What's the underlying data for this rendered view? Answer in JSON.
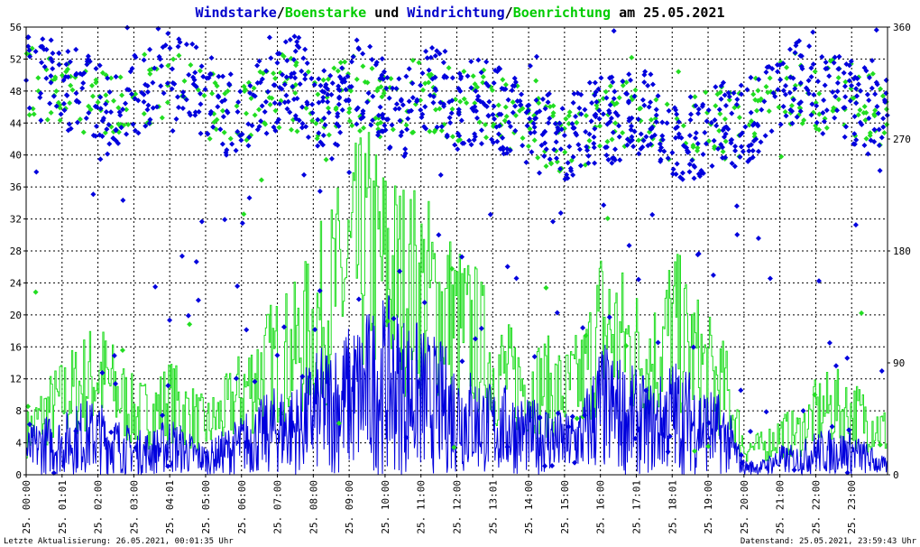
{
  "title": {
    "parts": [
      {
        "text": "Windstarke",
        "color": "#0000cc"
      },
      {
        "text": "/",
        "color": "#000000"
      },
      {
        "text": "Boenstarke",
        "color": "#00cc00"
      },
      {
        "text": " und ",
        "color": "#000000"
      },
      {
        "text": "Windrichtung",
        "color": "#0000cc"
      },
      {
        "text": "/",
        "color": "#000000"
      },
      {
        "text": "Boenrichtung",
        "color": "#00cc00"
      },
      {
        "text": " am 25.05.2021",
        "color": "#000000"
      }
    ]
  },
  "footer": {
    "left": "Letzte Aktualisierung: 26.05.2021, 00:01:35 Uhr",
    "right": "Datenstand: 25.05.2021, 23:59:43 Uhr"
  },
  "colors": {
    "wind": "#0000dd",
    "gust": "#22dd22",
    "grid": "#000000",
    "background": "#ffffff"
  },
  "chart_data": {
    "type": "line",
    "x_domain": [
      0,
      24
    ],
    "x_ticks": [
      "25. 00:00",
      "25. 01:01",
      "25. 02:00",
      "25. 03:00",
      "25. 04:01",
      "25. 05:00",
      "25. 06:00",
      "25. 07:00",
      "25. 08:00",
      "25. 09:00",
      "25. 10:00",
      "25. 11:00",
      "25. 12:00",
      "25. 13:01",
      "25. 14:00",
      "25. 15:00",
      "25. 16:00",
      "25. 17:01",
      "25. 18:01",
      "25. 19:00",
      "25. 20:00",
      "25. 21:00",
      "25. 22:00",
      "25. 23:00"
    ],
    "y_left": {
      "min": 0,
      "max": 56,
      "ticks": [
        0,
        4,
        8,
        12,
        16,
        20,
        24,
        28,
        32,
        36,
        40,
        44,
        48,
        52,
        56
      ]
    },
    "y_right": {
      "min": 0,
      "max": 360,
      "ticks": [
        0,
        90,
        180,
        270,
        360
      ]
    },
    "grid": true,
    "series": [
      {
        "name": "Windstarke",
        "axis": "left",
        "style": "line",
        "x": [
          0,
          0.5,
          1,
          1.5,
          2,
          2.5,
          3,
          3.5,
          4,
          4.5,
          5,
          5.5,
          6,
          6.5,
          7,
          7.5,
          8,
          8.5,
          9,
          9.5,
          10,
          10.5,
          11,
          11.5,
          12,
          12.5,
          13,
          13.5,
          14,
          14.5,
          15,
          15.5,
          16,
          16.5,
          17,
          17.5,
          18,
          18.5,
          19,
          19.5,
          20,
          20.5,
          21,
          21.5,
          22,
          22.5,
          23,
          23.5,
          24
        ],
        "values": [
          3,
          4,
          4,
          5,
          5,
          4,
          3,
          3,
          4,
          3,
          2,
          3,
          4,
          5,
          6,
          6,
          8,
          9,
          10,
          11,
          12,
          11,
          10,
          9,
          8,
          7,
          6,
          6,
          5,
          5,
          4,
          5,
          9,
          8,
          7,
          6,
          8,
          7,
          6,
          5,
          1,
          1,
          2,
          2,
          3,
          3,
          3,
          2,
          1
        ]
      },
      {
        "name": "Boenstarke",
        "axis": "left",
        "style": "line",
        "x": [
          0,
          0.5,
          1,
          1.5,
          2,
          2.5,
          3,
          3.5,
          4,
          4.5,
          5,
          5.5,
          6,
          6.5,
          7,
          7.5,
          8,
          8.5,
          9,
          9.5,
          10,
          10.5,
          11,
          11.5,
          12,
          12.5,
          13,
          13.5,
          14,
          14.5,
          15,
          15.5,
          16,
          16.5,
          17,
          17.5,
          18,
          18.5,
          19,
          19.5,
          20,
          20.5,
          21,
          21.5,
          22,
          22.5,
          23,
          23.5,
          24
        ],
        "values": [
          6,
          9,
          11,
          13,
          15,
          12,
          9,
          9,
          11,
          9,
          7,
          9,
          12,
          15,
          17,
          18,
          22,
          26,
          30,
          33,
          30,
          28,
          27,
          25,
          22,
          20,
          16,
          14,
          13,
          13,
          12,
          14,
          22,
          20,
          18,
          17,
          22,
          18,
          15,
          12,
          4,
          4,
          6,
          6,
          9,
          10,
          9,
          8,
          6
        ]
      },
      {
        "name": "Windrichtung",
        "axis": "right",
        "style": "points",
        "x": [
          0,
          0.5,
          1,
          1.5,
          2,
          2.5,
          3,
          3.5,
          4,
          4.5,
          5,
          5.5,
          6,
          6.5,
          7,
          7.5,
          8,
          8.5,
          9,
          9.5,
          10,
          10.5,
          11,
          11.5,
          12,
          12.5,
          13,
          13.5,
          14,
          14.5,
          15,
          15.5,
          16,
          16.5,
          17,
          17.5,
          18,
          18.5,
          19,
          19.5,
          20,
          20.5,
          21,
          21.5,
          22,
          22.5,
          23,
          23.5,
          24
        ],
        "values": [
          320,
          318,
          312,
          308,
          295,
          290,
          300,
          310,
          322,
          318,
          305,
          292,
          282,
          300,
          312,
          322,
          300,
          288,
          306,
          312,
          300,
          290,
          306,
          312,
          296,
          300,
          300,
          290,
          280,
          276,
          272,
          278,
          284,
          286,
          292,
          294,
          266,
          270,
          278,
          285,
          280,
          292,
          305,
          318,
          305,
          310,
          300,
          292,
          286
        ]
      },
      {
        "name": "Boenrichtung",
        "axis": "right",
        "style": "points",
        "x": [
          0,
          1,
          2,
          3,
          4,
          5,
          6,
          7,
          8,
          9,
          10,
          11,
          12,
          13,
          14,
          15,
          16,
          17,
          18,
          19,
          20,
          21,
          22,
          23,
          24
        ],
        "values": [
          318,
          310,
          300,
          305,
          320,
          300,
          290,
          310,
          295,
          308,
          300,
          305,
          298,
          300,
          282,
          272,
          284,
          292,
          270,
          282,
          285,
          310,
          308,
          302,
          292
        ]
      }
    ]
  }
}
